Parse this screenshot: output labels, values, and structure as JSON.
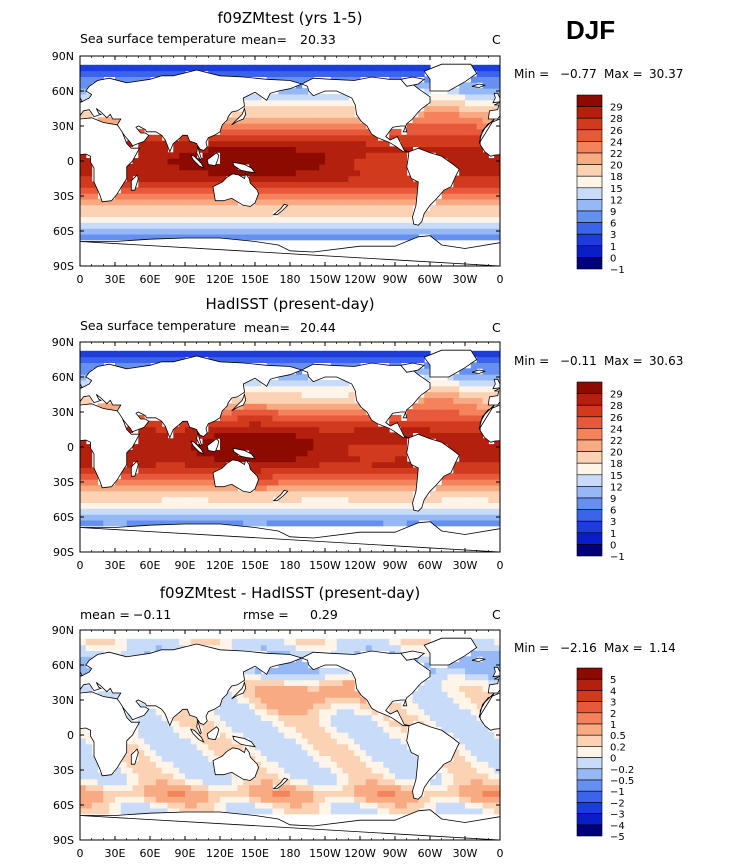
{
  "season": "DJF",
  "x_ticks": [
    "0",
    "30E",
    "60E",
    "90E",
    "120E",
    "150E",
    "180",
    "150W",
    "120W",
    "90W",
    "60W",
    "30W",
    "0"
  ],
  "y_ticks": [
    "90N",
    "60N",
    "30N",
    "0",
    "30S",
    "60S",
    "90S"
  ],
  "palette": {
    "sst": [
      "#00007a",
      "#0a1ec8",
      "#1e3cdc",
      "#3c64eb",
      "#6690f0",
      "#96b9f5",
      "#c8dcfa",
      "#fff4e8",
      "#fcd2b4",
      "#f8aa82",
      "#f5825a",
      "#e8583a",
      "#d23a1e",
      "#b4200e",
      "#8c0a00"
    ],
    "diff": [
      "#00007a",
      "#0a1ec8",
      "#1e3cdc",
      "#3c64eb",
      "#6690f0",
      "#96b9f5",
      "#c8dcfa",
      "#fff4e8",
      "#fcd2b4",
      "#f8aa82",
      "#f5825a",
      "#e8583a",
      "#d23a1e",
      "#b4200e",
      "#8c0a00"
    ],
    "land": "#ffffff"
  },
  "panels": [
    {
      "title": "f09ZMtest (yrs 1-5)",
      "variable": "Sea surface temperature",
      "mean_label": "mean=",
      "mean": "20.33",
      "units": "C",
      "min_label": "Min =",
      "min": "−0.77",
      "max_label": "Max =",
      "max": "30.37",
      "kind": "sst",
      "colorbar_labels": [
        "29",
        "28",
        "26",
        "24",
        "22",
        "20",
        "18",
        "15",
        "12",
        "9",
        "6",
        "3",
        "1",
        "0",
        "−1"
      ]
    },
    {
      "title": "HadISST (present-day)",
      "variable": "Sea surface temperature",
      "mean_label": "mean=",
      "mean": "20.44",
      "units": "C",
      "min_label": "Min =",
      "min": "−0.11",
      "max_label": "Max =",
      "max": "30.63",
      "kind": "sst",
      "colorbar_labels": [
        "29",
        "28",
        "26",
        "24",
        "22",
        "20",
        "18",
        "15",
        "12",
        "9",
        "6",
        "3",
        "1",
        "0",
        "−1"
      ]
    },
    {
      "title": "f09ZMtest - HadISST (present-day)",
      "mean_label": "mean =",
      "mean": "−0.11",
      "rmse_label": "rmse =",
      "rmse": "0.29",
      "units": "C",
      "min_label": "Min =",
      "min": "−2.16",
      "max_label": "Max =",
      "max": "1.14",
      "kind": "diff",
      "colorbar_labels": [
        "5",
        "4",
        "3",
        "2",
        "1",
        "0.5",
        "0.2",
        "0",
        "−0.2",
        "−0.5",
        "−1",
        "−2",
        "−3",
        "−4",
        "−5"
      ]
    }
  ]
}
